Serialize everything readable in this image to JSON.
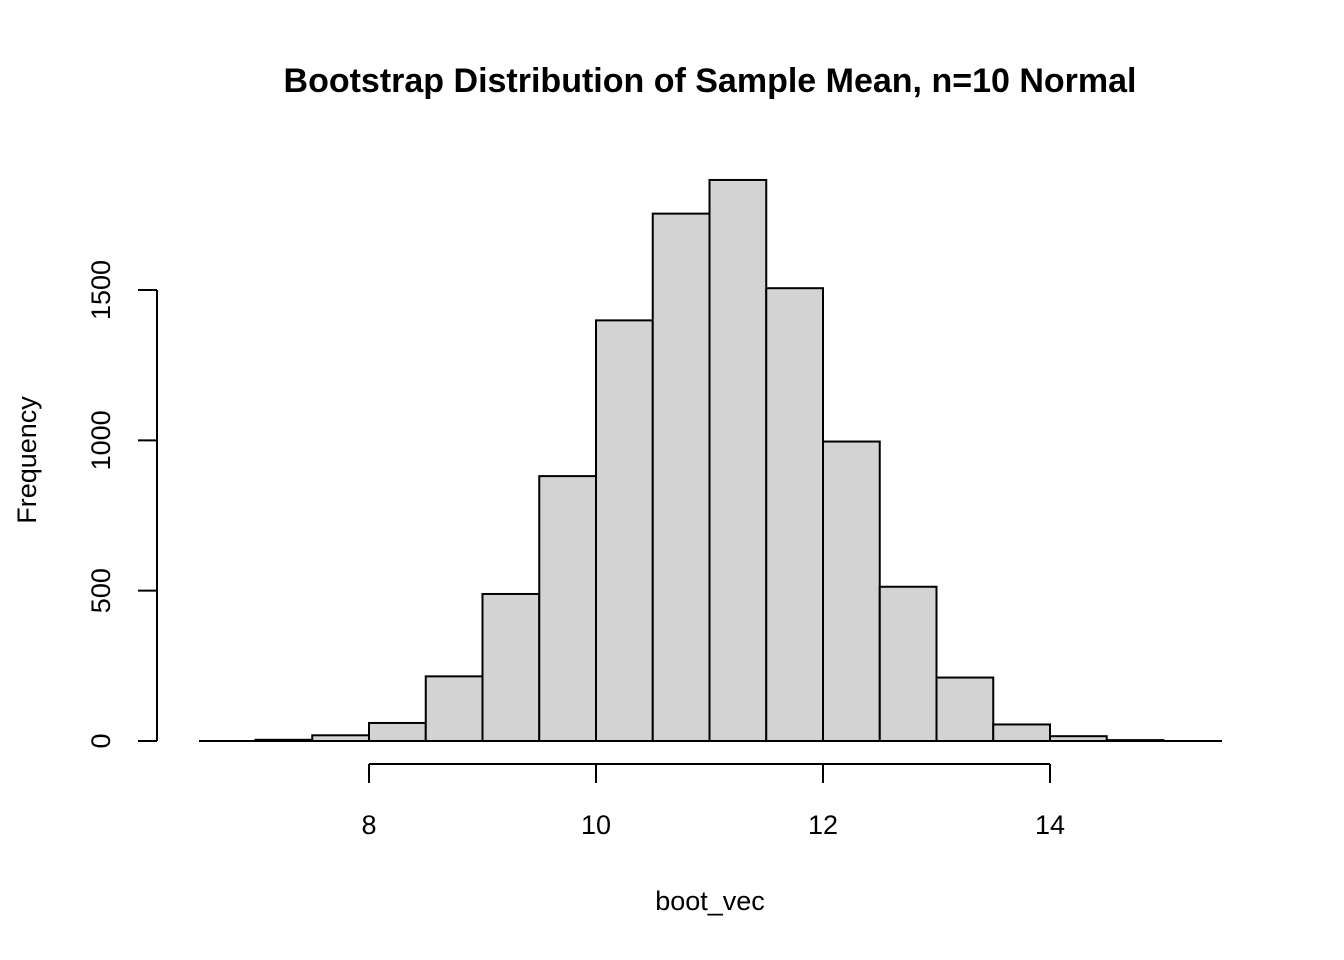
{
  "chart_data": {
    "type": "bar",
    "title": "Bootstrap Distribution of Sample Mean, n=10 Normal",
    "xlabel": "boot_vec",
    "ylabel": "Frequency",
    "bin_edges": [
      7,
      7.5,
      8,
      8.5,
      9,
      9.5,
      10,
      10.5,
      11,
      11.5,
      12,
      12.5,
      13,
      13.5,
      14,
      14.5,
      15
    ],
    "values": [
      4,
      19,
      60,
      215,
      489,
      881,
      1399,
      1754,
      1866,
      1506,
      996,
      513,
      211,
      55,
      16,
      3
    ],
    "xlim": [
      6.5,
      15.5
    ],
    "ylim": [
      0,
      1900
    ],
    "x_ticks": [
      8,
      10,
      12,
      14
    ],
    "y_ticks": [
      0,
      500,
      1000,
      1500
    ],
    "grid": false,
    "bar_color": "#d3d3d3"
  }
}
